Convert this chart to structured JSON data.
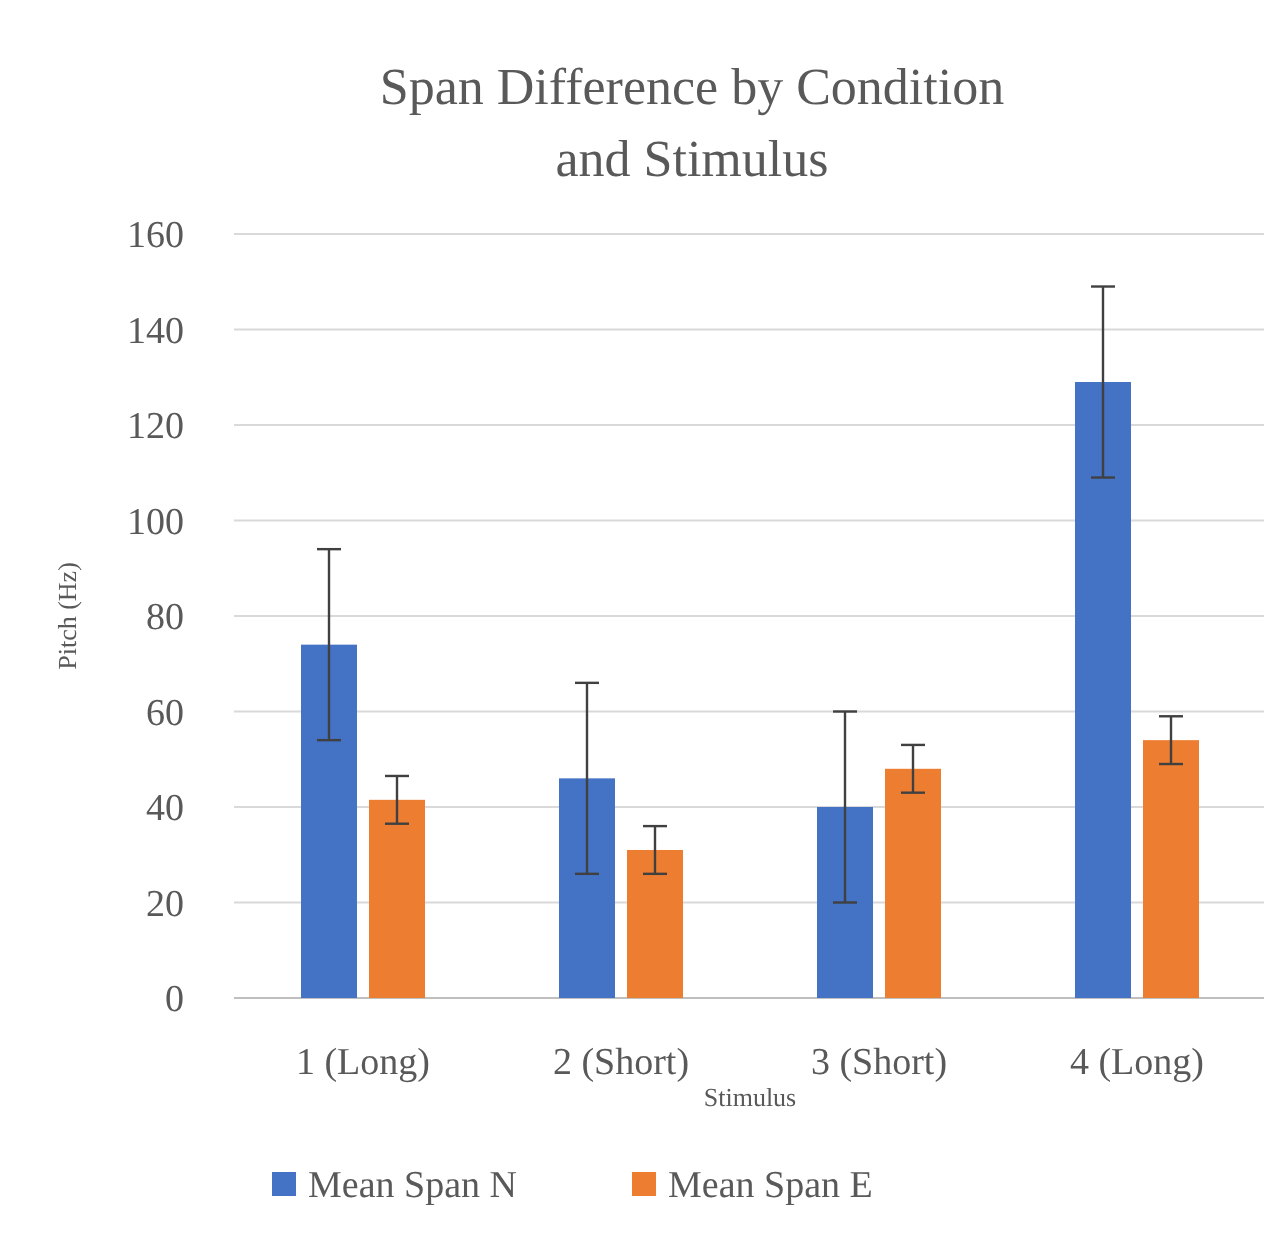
{
  "chart_data": {
    "type": "bar",
    "title": "Span Difference  by Condition  and Stimulus",
    "xlabel": "Stimulus",
    "ylabel": "Pitch (Hz)",
    "categories": [
      "1 (Long)",
      "2 (Short)",
      "3 (Short)",
      "4 (Long)"
    ],
    "series": [
      {
        "name": "Mean Span N",
        "color": "#4472c4",
        "values": [
          74,
          46,
          40,
          129
        ],
        "errors": [
          20,
          20,
          20,
          20
        ]
      },
      {
        "name": "Mean Span E",
        "color": "#ed7d31",
        "values": [
          41.5,
          31,
          48,
          54
        ],
        "errors": [
          5,
          5,
          5,
          5
        ]
      }
    ],
    "ylim": [
      0,
      160
    ],
    "yticks": [
      0,
      20,
      40,
      60,
      80,
      100,
      120,
      140,
      160
    ],
    "grid": "y",
    "legend": "bottom"
  }
}
